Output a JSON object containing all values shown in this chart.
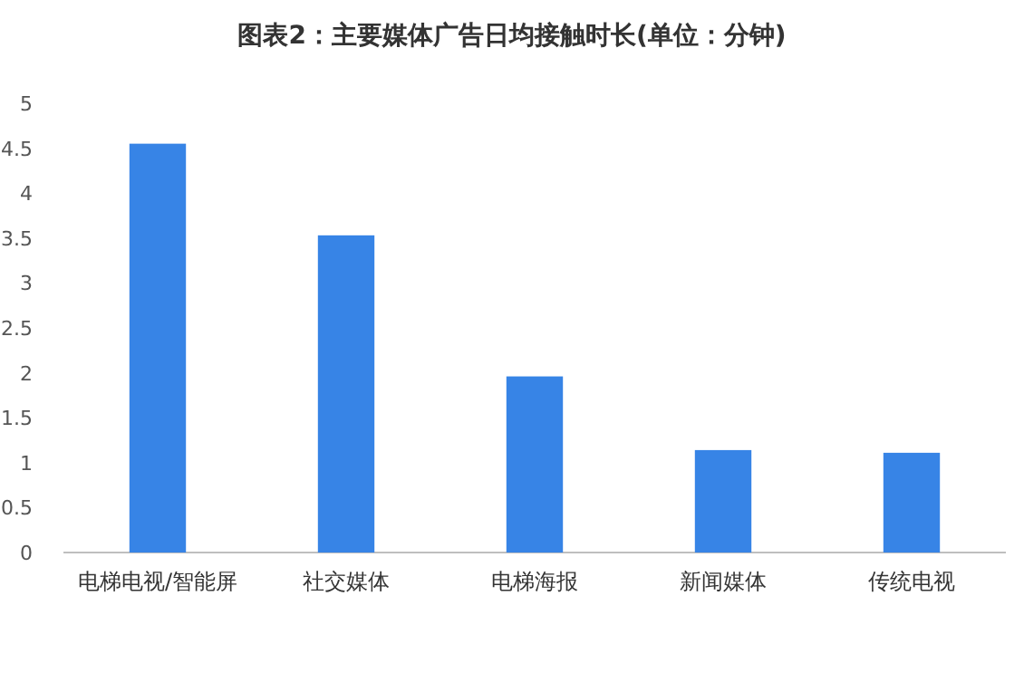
{
  "chart_data": {
    "type": "bar",
    "title": "图表2：主要媒体广告日均接触时长(单位：分钟)",
    "categories": [
      "电梯电视/智能屏",
      "社交媒体",
      "电梯海报",
      "新闻媒体",
      "传统电视"
    ],
    "values": [
      4.55,
      3.53,
      1.96,
      1.14,
      1.11
    ],
    "color": "#3784e6",
    "ylim": [
      0,
      5
    ],
    "yticks": [
      0,
      0.5,
      1,
      1.5,
      2,
      2.5,
      3,
      3.5,
      4,
      4.5,
      5
    ]
  }
}
